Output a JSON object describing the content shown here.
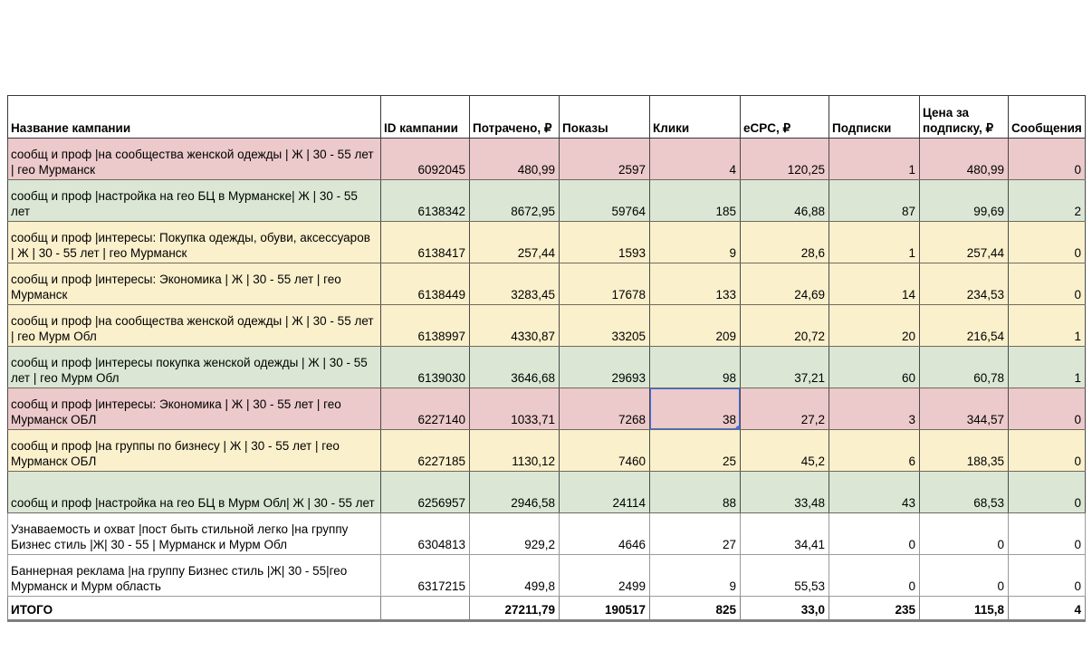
{
  "colors": {
    "pink": "#ecc9ca",
    "green": "#dbe7d4",
    "yellow": "#fbf0cc",
    "white": "#ffffff",
    "selection_blue": "#3d6fe8"
  },
  "table": {
    "columns": [
      "Название кампании",
      "ID кампании",
      "Потрачено, ₽",
      "Показы",
      "Клики",
      "eCPC, ₽",
      "Подписки",
      "Цена за подписку, ₽",
      "Сообщения"
    ],
    "rows": [
      {
        "name": "сообщ и проф |на сообщества женской одежды | Ж | 30 - 55 лет | гео Мурманск",
        "id": "6092045",
        "spent": "480,99",
        "shows": "2597",
        "clicks": "4",
        "ecpc": "120,25",
        "subs": "1",
        "price": "480,99",
        "messages": "0",
        "color": "pink"
      },
      {
        "name": "сообщ и проф |настройка на гео БЦ в Мурманске| Ж | 30 - 55 лет",
        "id": "6138342",
        "spent": "8672,95",
        "shows": "59764",
        "clicks": "185",
        "ecpc": "46,88",
        "subs": "87",
        "price": "99,69",
        "messages": "2",
        "color": "green"
      },
      {
        "name": "сообщ и проф |интересы: Покупка одежды, обуви, аксессуаров | Ж |  30 - 55 лет | гео Мурманск",
        "id": "6138417",
        "spent": "257,44",
        "shows": "1593",
        "clicks": "9",
        "ecpc": "28,6",
        "subs": "1",
        "price": "257,44",
        "messages": "0",
        "color": "yellow"
      },
      {
        "name": "сообщ и проф |интересы: Экономика  | Ж |  30 - 55 лет | гео Мурманск",
        "id": "6138449",
        "spent": "3283,45",
        "shows": "17678",
        "clicks": "133",
        "ecpc": "24,69",
        "subs": "14",
        "price": "234,53",
        "messages": "0",
        "color": "yellow"
      },
      {
        "name": "сообщ и проф |на сообщества женской одежды | Ж | 30 - 55 лет | гео Мурм Обл",
        "id": "6138997",
        "spent": "4330,87",
        "shows": "33205",
        "clicks": "209",
        "ecpc": "20,72",
        "subs": "20",
        "price": "216,54",
        "messages": "1",
        "color": "yellow"
      },
      {
        "name": "сообщ и проф |интересы покупка женской одежды | Ж |  30 - 55 лет | гео Мурм Обл",
        "id": "6139030",
        "spent": "3646,68",
        "shows": "29693",
        "clicks": "98",
        "ecpc": "37,21",
        "subs": "60",
        "price": "60,78",
        "messages": "1",
        "color": "green"
      },
      {
        "name": "сообщ и проф |интересы: Экономика  | Ж |  30 - 55 лет | гео Мурманск ОБЛ",
        "id": "6227140",
        "spent": "1033,71",
        "shows": "7268",
        "clicks": "38",
        "ecpc": "27,2",
        "subs": "3",
        "price": "344,57",
        "messages": "0",
        "color": "pink"
      },
      {
        "name": "сообщ и проф |на группы по бизнесу | Ж |  30 - 55 лет | гео Мурманск ОБЛ",
        "id": "6227185",
        "spent": "1130,12",
        "shows": "7460",
        "clicks": "25",
        "ecpc": "45,2",
        "subs": "6",
        "price": "188,35",
        "messages": "0",
        "color": "yellow"
      },
      {
        "name": "сообщ и проф |настройка на гео БЦ в Мурм Обл| Ж |  30 - 55 лет",
        "id": "6256957",
        "spent": "2946,58",
        "shows": "24114",
        "clicks": "88",
        "ecpc": "33,48",
        "subs": "43",
        "price": "68,53",
        "messages": "0",
        "color": "green"
      },
      {
        "name": "Узнаваемость и охват |пост быть стильной легко  |на группу Бизнес стиль |Ж| 30 - 55 | Мурманск и Мурм Обл",
        "id": "6304813",
        "spent": "929,2",
        "shows": "4646",
        "clicks": "27",
        "ecpc": "34,41",
        "subs": "0",
        "price": "0",
        "messages": "0",
        "color": "white"
      },
      {
        "name": "Баннерная реклама |на группу Бизнес стиль |Ж| 30 - 55|гео  Мурманск и Мурм область",
        "id": "6317215",
        "spent": "499,8",
        "shows": "2499",
        "clicks": "9",
        "ecpc": "55,53",
        "subs": "0",
        "price": "0",
        "messages": "0",
        "color": "white"
      }
    ],
    "total": {
      "label": "ИТОГО",
      "id": "",
      "spent": "27211,79",
      "shows": "190517",
      "clicks": "825",
      "ecpc": "33,0",
      "subs": "235",
      "price": "115,8",
      "messages": "4"
    }
  },
  "selection": {
    "row_index": 6,
    "column": "clicks"
  }
}
